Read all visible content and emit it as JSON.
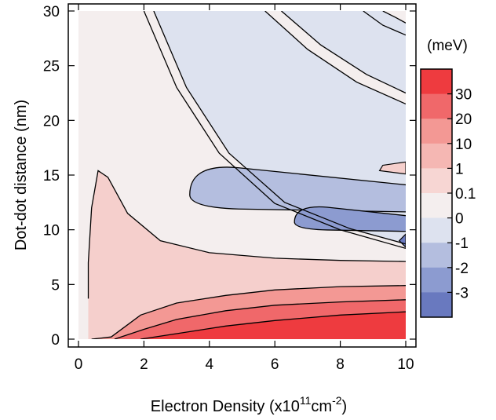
{
  "chart_data": {
    "type": "contour",
    "xlabel": {
      "prefix": "Electron Density (x10",
      "exp1": "11",
      "mid": "cm",
      "exp2": "-2",
      "suffix": ")"
    },
    "ylabel": "Dot-dot distance (nm)",
    "xlim": [
      0,
      10
    ],
    "ylim": [
      0,
      30
    ],
    "xticks": [
      "0",
      "2",
      "4",
      "6",
      "8",
      "10"
    ],
    "yticks": [
      "0",
      "5",
      "10",
      "15",
      "20",
      "25",
      "30"
    ],
    "colorbar": {
      "title": "(meV)",
      "levels": [
        "30",
        "20",
        "10",
        "1",
        "0.1",
        "0",
        "-1",
        "-2",
        "-3"
      ],
      "band_colors": [
        "#ee3b3f",
        "#f0686a",
        "#f39894",
        "#f5b7b3",
        "#f7d6d3",
        "#f4eeee",
        "#dde2ef",
        "#b4bedf",
        "#8c9bd0",
        "#6979bf"
      ]
    },
    "regions": [
      {
        "name": "0 to 0.1",
        "color": "#f4eeee"
      },
      {
        "name": "-1 to 0",
        "color": "#dde2ef"
      },
      {
        "name": "-2 to -1",
        "color": "#b4bedf"
      },
      {
        "name": "-3 to -2",
        "color": "#8c9bd0"
      },
      {
        "name": "below -3",
        "color": "#6979bf"
      },
      {
        "name": "0.1 to 1",
        "color": "#f5cfcc"
      },
      {
        "name": "1 to 10",
        "color": "#f39894"
      },
      {
        "name": "10 to 20",
        "color": "#f0686a"
      },
      {
        "name": "above 20",
        "color": "#ee3b3f"
      }
    ],
    "contour_lines": {
      "wedge_0": [
        [
          0.3,
          3.7
        ],
        [
          0.3,
          7
        ],
        [
          0.4,
          12
        ],
        [
          0.6,
          15.4
        ],
        [
          0.9,
          14.8
        ],
        [
          1.5,
          11.5
        ],
        [
          2.5,
          9
        ],
        [
          4,
          7.9
        ],
        [
          6,
          7.4
        ],
        [
          8,
          7.2
        ],
        [
          10,
          7.1
        ]
      ],
      "outer_light_1": [
        [
          2,
          30
        ],
        [
          3,
          23
        ],
        [
          4.3,
          17
        ],
        [
          6,
          12.4
        ],
        [
          8,
          10
        ],
        [
          10,
          8.3
        ]
      ],
      "outer_light_2": [
        [
          2.3,
          30
        ],
        [
          3.3,
          23
        ],
        [
          4.6,
          17
        ],
        [
          6.3,
          12.5
        ],
        [
          8.3,
          10.1
        ],
        [
          10,
          8.7
        ]
      ],
      "mid_light_1": [
        [
          5.7,
          30
        ],
        [
          7,
          26.5
        ],
        [
          8.5,
          23.5
        ],
        [
          10,
          21.5
        ]
      ],
      "mid_light_2": [
        [
          6.2,
          30
        ],
        [
          7.4,
          26.9
        ],
        [
          8.8,
          24.2
        ],
        [
          10,
          22.5
        ]
      ],
      "inner_light_1": [
        [
          8.7,
          30
        ],
        [
          9.3,
          28.7
        ],
        [
          10,
          27.8
        ]
      ],
      "inner_light_2": [
        [
          9.3,
          30
        ],
        [
          9.7,
          29.4
        ],
        [
          10,
          28.9
        ]
      ],
      "bottom_red": [
        [
          0.4,
          0
        ],
        [
          1,
          0.2
        ],
        [
          1.9,
          2.2
        ],
        [
          3,
          3.3
        ],
        [
          4.5,
          4
        ],
        [
          6,
          4.5
        ],
        [
          8,
          4.8
        ],
        [
          10,
          4.9
        ]
      ],
      "red2": [
        [
          1.1,
          0
        ],
        [
          2,
          0.9
        ],
        [
          3,
          1.8
        ],
        [
          4.5,
          2.6
        ],
        [
          6,
          3.1
        ],
        [
          8,
          3.4
        ],
        [
          10,
          3.6
        ]
      ],
      "red3": [
        [
          1.9,
          0
        ],
        [
          3,
          0.5
        ],
        [
          4.5,
          1.2
        ],
        [
          6,
          1.7
        ],
        [
          8,
          2.2
        ],
        [
          10,
          2.5
        ]
      ],
      "loop_dash1": [
        [
          10,
          16.2
        ],
        [
          9.3,
          15.9
        ],
        [
          9.2,
          15.4
        ],
        [
          10,
          15.1
        ]
      ],
      "loop_dash2": [
        [
          10,
          9.6
        ],
        [
          9.8,
          9
        ],
        [
          10,
          8.4
        ]
      ]
    }
  }
}
